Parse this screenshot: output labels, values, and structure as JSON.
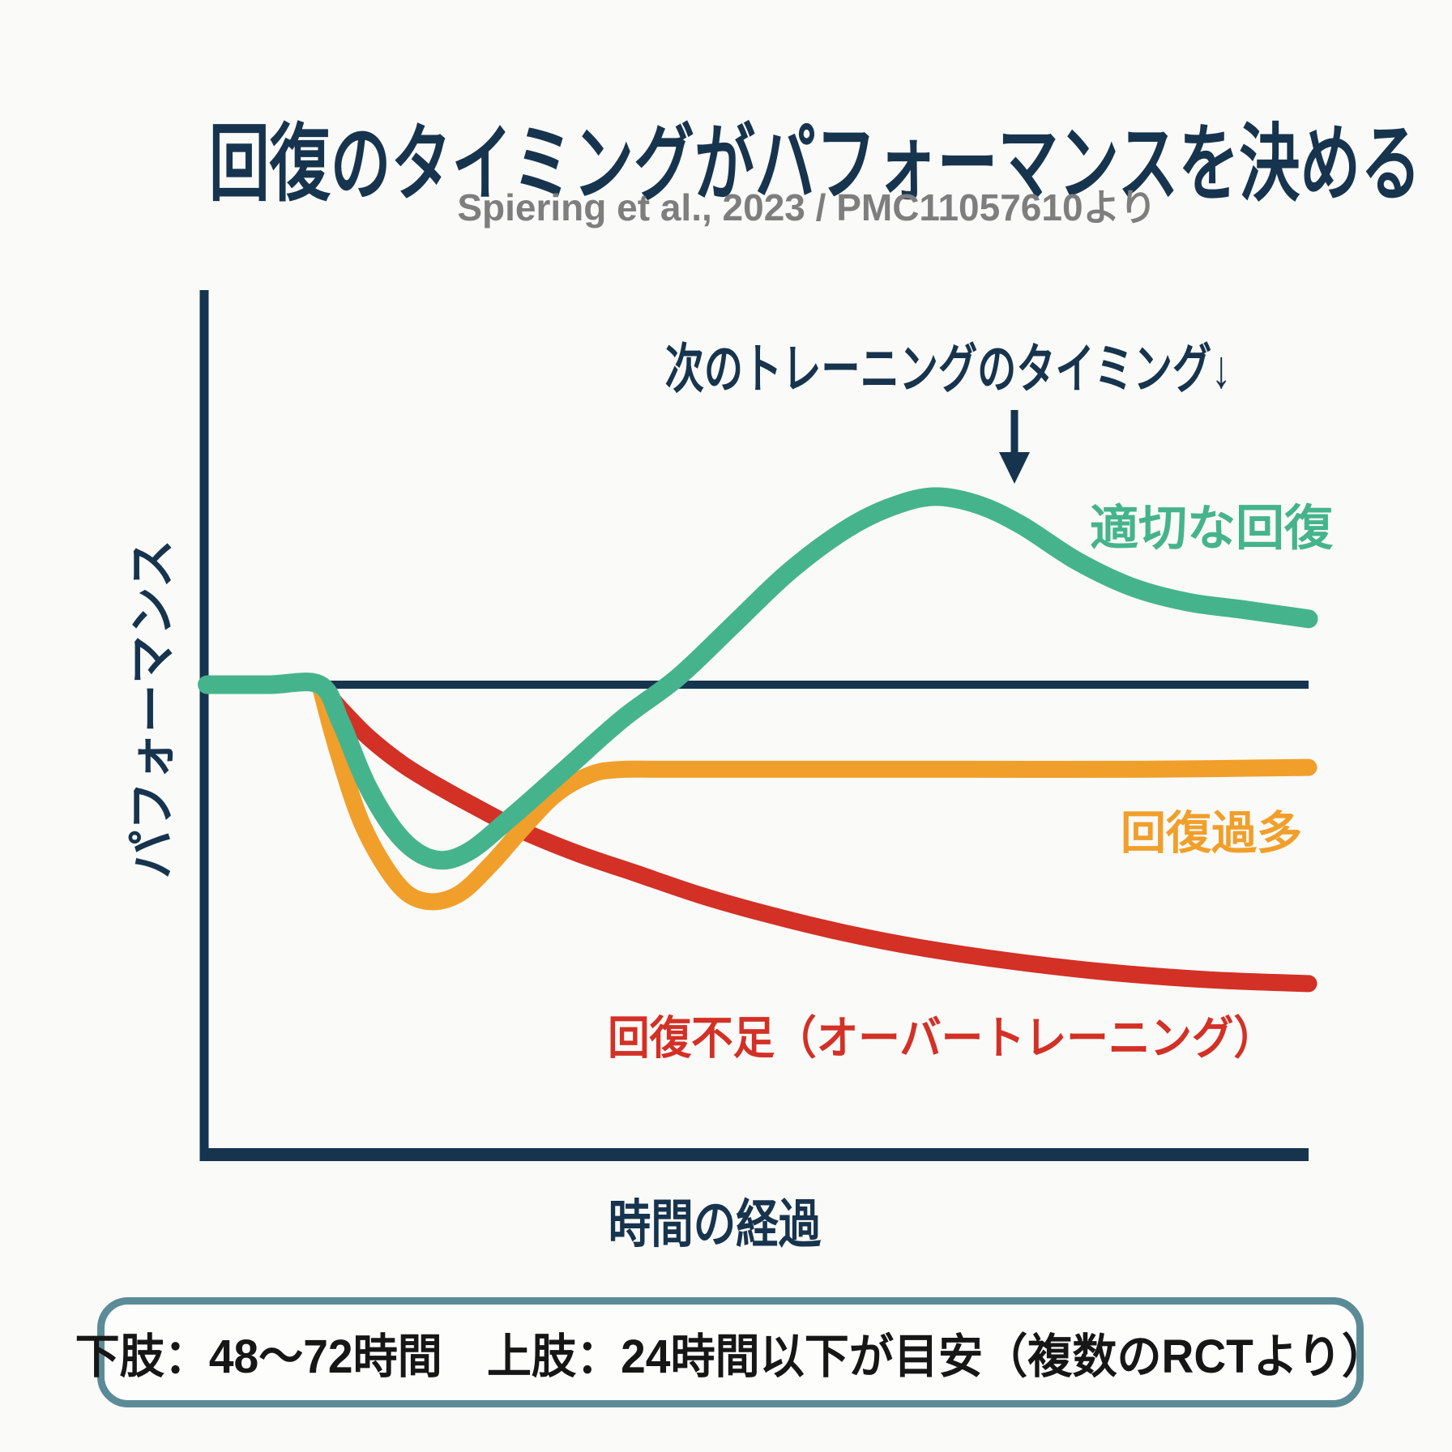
{
  "page": {
    "background_color": "#fafaf8",
    "accent_navy": "#17344e"
  },
  "header": {
    "title": "回復のタイミングがパフォーマンスを決める",
    "subtitle": "Spiering et al., 2023 / PMC11057610より"
  },
  "chart_data": {
    "type": "line",
    "title": "回復のタイミングがパフォーマンスを決める",
    "xlabel": "時間の経過",
    "ylabel": "パフォーマンス",
    "grid": false,
    "axes": {
      "color": "#17344e",
      "x_ticks": "none",
      "y_ticks": "none",
      "x_range": [
        0,
        100
      ],
      "y_range": [
        -2.0,
        1.3
      ],
      "y_unit": "ベースライン=0、超回復ピーク=1.0 の相対値"
    },
    "baseline": {
      "value": 0,
      "x_start": 10.6,
      "color": "#17344e"
    },
    "annotation": {
      "text": "次のトレーニングのタイミング↓",
      "arrow": true
    },
    "series": [
      {
        "name": "適切な回復",
        "color": "#45b48c",
        "stroke_width": 23,
        "points": [
          [
            0.4,
            0
          ],
          [
            6,
            0
          ],
          [
            10.6,
            0
          ],
          [
            12.5,
            -0.2
          ],
          [
            15,
            -0.55
          ],
          [
            18,
            -0.82
          ],
          [
            21,
            -0.93
          ],
          [
            24,
            -0.89
          ],
          [
            28,
            -0.7
          ],
          [
            33,
            -0.44
          ],
          [
            38,
            -0.18
          ],
          [
            43,
            0.04
          ],
          [
            48,
            0.32
          ],
          [
            53,
            0.6
          ],
          [
            58,
            0.82
          ],
          [
            62,
            0.94
          ],
          [
            66,
            1.0
          ],
          [
            70,
            0.96
          ],
          [
            74,
            0.85
          ],
          [
            79,
            0.66
          ],
          [
            84,
            0.52
          ],
          [
            89,
            0.44
          ],
          [
            94,
            0.4
          ],
          [
            100,
            0.35
          ]
        ]
      },
      {
        "name": "回復過多",
        "color": "#f19f2b",
        "stroke_width": 21,
        "points": [
          [
            10.6,
            0
          ],
          [
            12.2,
            -0.35
          ],
          [
            14.5,
            -0.75
          ],
          [
            17.5,
            -1.05
          ],
          [
            20,
            -1.15
          ],
          [
            23,
            -1.12
          ],
          [
            26,
            -0.96
          ],
          [
            29,
            -0.76
          ],
          [
            32,
            -0.58
          ],
          [
            35,
            -0.48
          ],
          [
            37.5,
            -0.452
          ],
          [
            42,
            -0.45
          ],
          [
            55,
            -0.45
          ],
          [
            70,
            -0.45
          ],
          [
            85,
            -0.45
          ],
          [
            100,
            -0.44
          ]
        ]
      },
      {
        "name": "回復不足（オーバートレーニング）",
        "color": "#d33026",
        "stroke_width": 21,
        "points": [
          [
            10.6,
            0
          ],
          [
            12.5,
            -0.13
          ],
          [
            15,
            -0.28
          ],
          [
            18,
            -0.42
          ],
          [
            21,
            -0.53
          ],
          [
            25,
            -0.66
          ],
          [
            29,
            -0.78
          ],
          [
            34,
            -0.9
          ],
          [
            39,
            -1.0
          ],
          [
            45,
            -1.12
          ],
          [
            51,
            -1.22
          ],
          [
            58,
            -1.32
          ],
          [
            65,
            -1.4
          ],
          [
            73,
            -1.47
          ],
          [
            82,
            -1.53
          ],
          [
            91,
            -1.57
          ],
          [
            100,
            -1.59
          ]
        ]
      }
    ]
  },
  "footer": {
    "note": "下肢：48〜72時間　上肢：24時間以下が目安（複数のRCTより）",
    "border_color": "#5c8b98"
  }
}
